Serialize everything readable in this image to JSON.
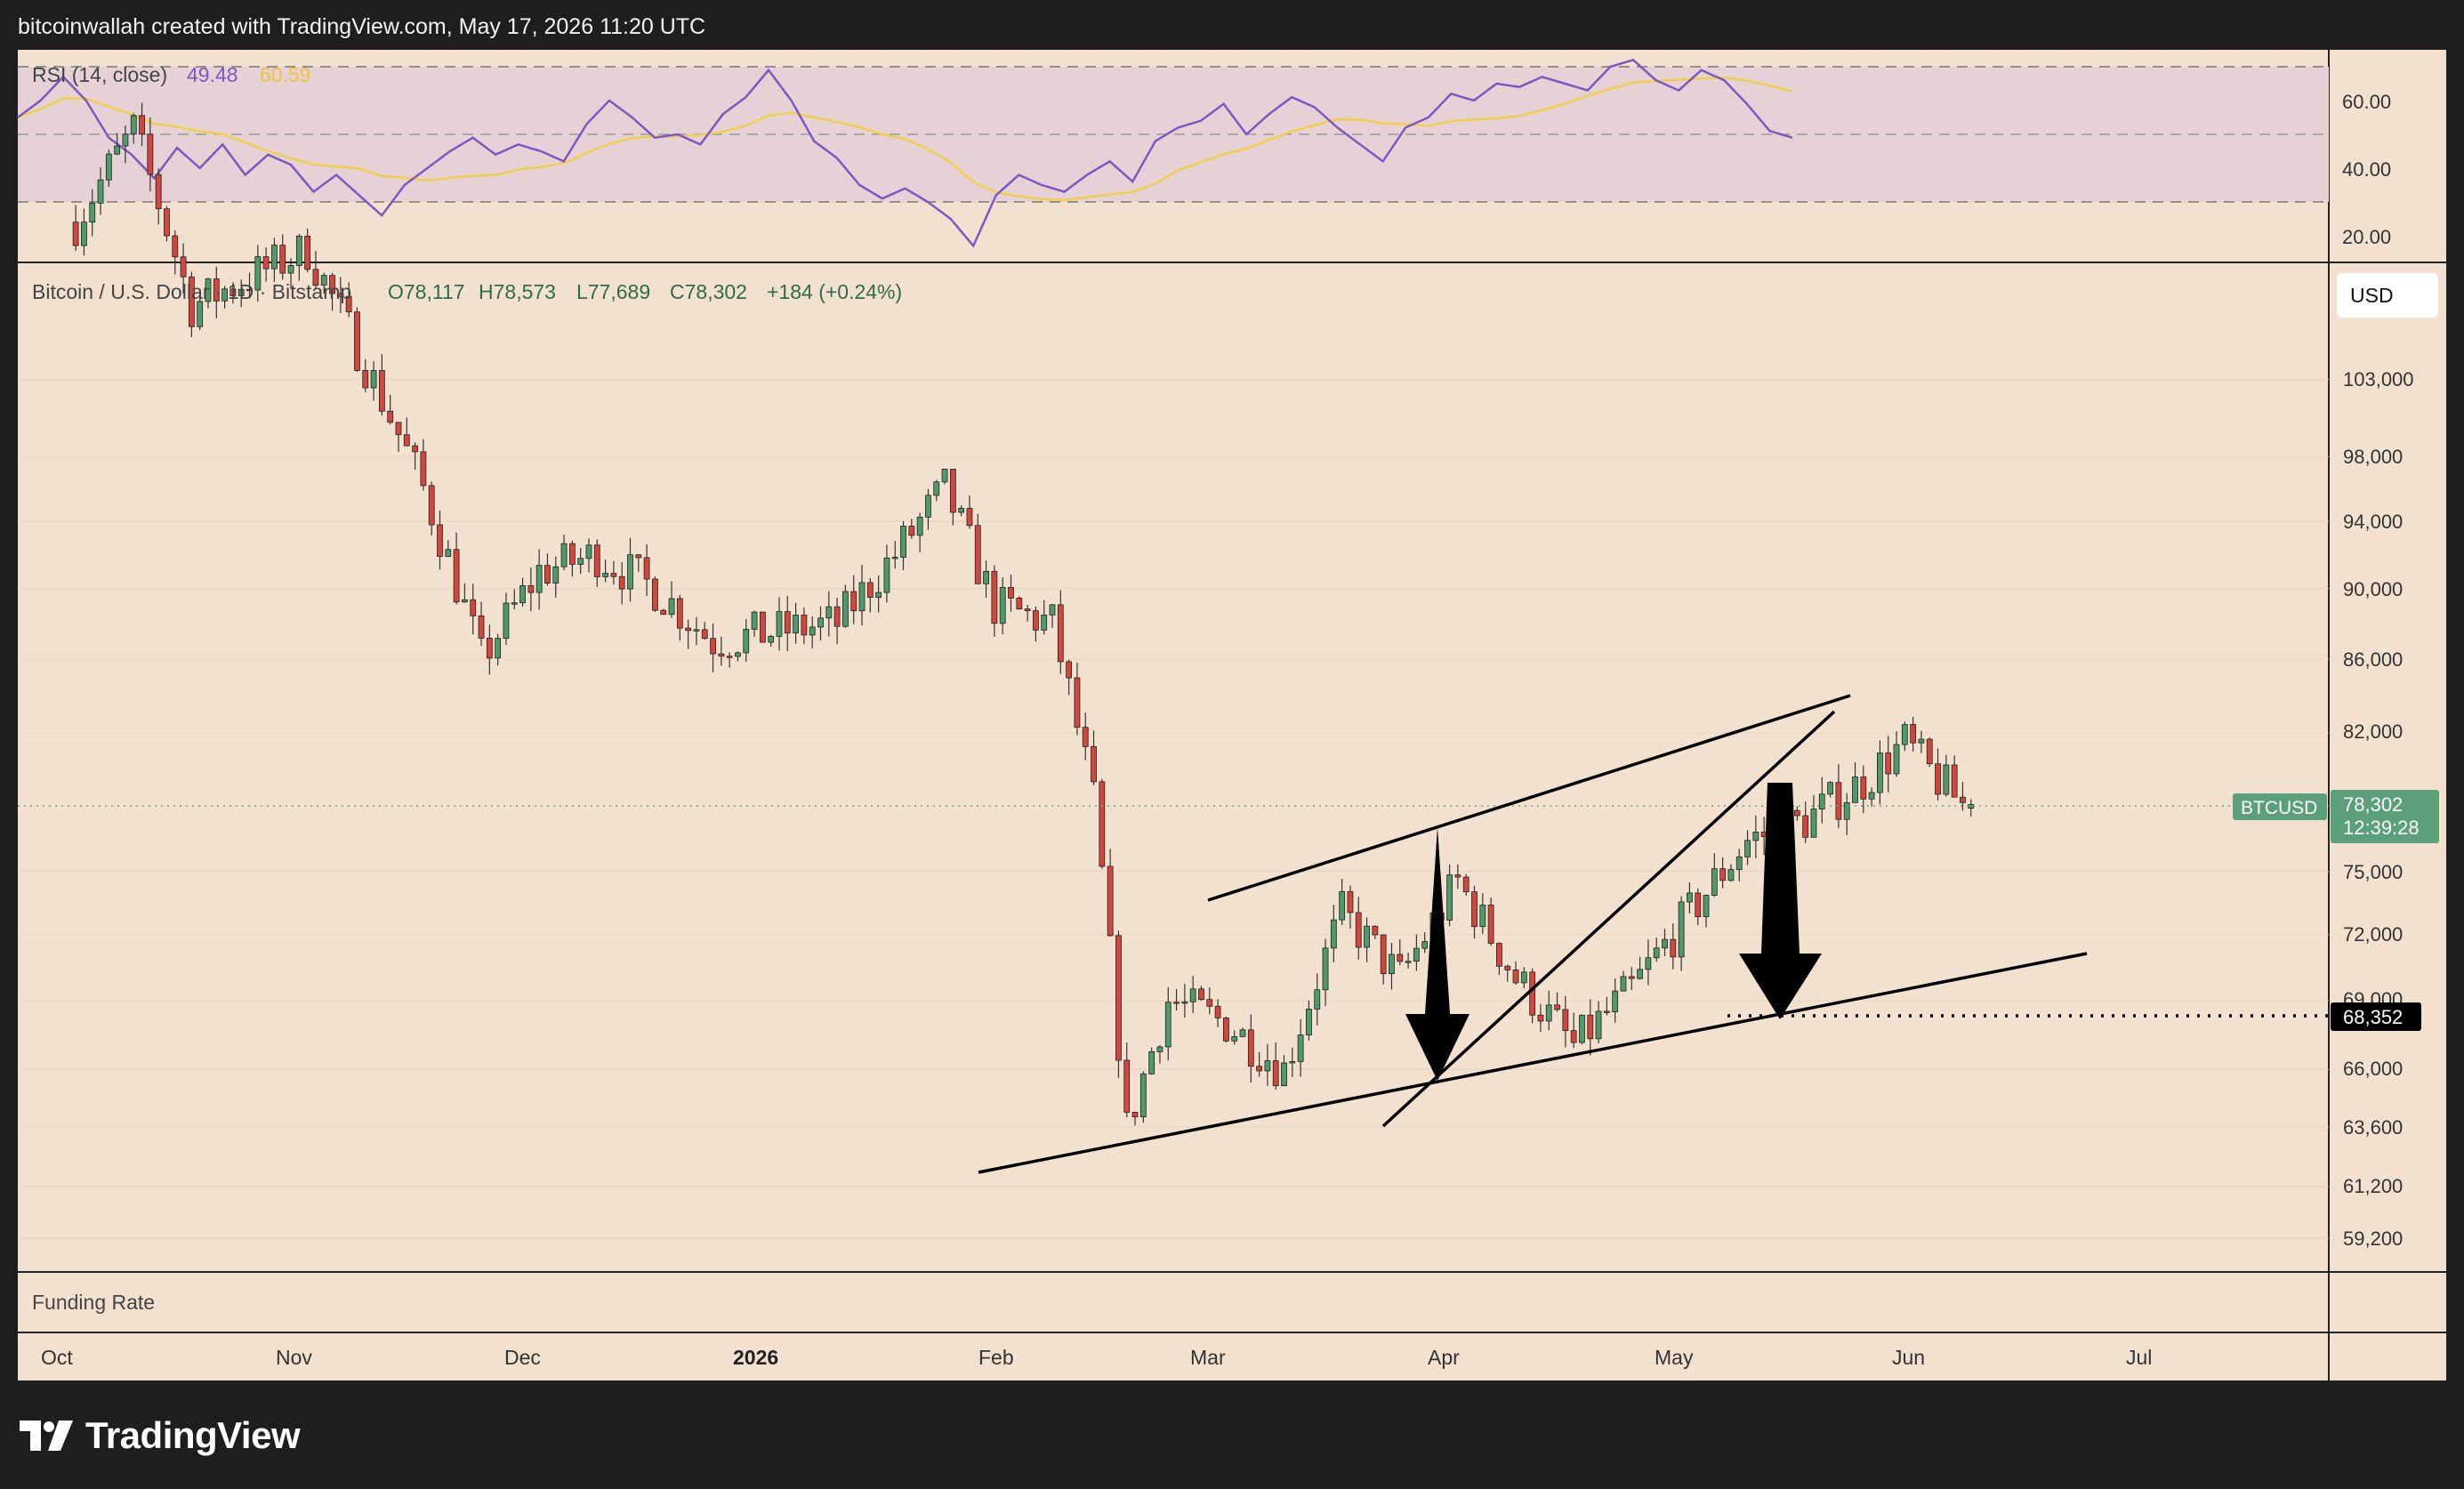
{
  "header": {
    "attribution": "bitcoinwallah created with TradingView.com, May 17, 2026 11:20 UTC"
  },
  "brand": {
    "name": "TradingView"
  },
  "colors": {
    "background": "#f3e1cf",
    "frame": "#1e1e1e",
    "up": "#4e9a6a",
    "down": "#d2473d",
    "rsi": "#7e57c2",
    "rsi_ma": "#f0d04a",
    "price_tag": "#5b9f7b"
  },
  "rsi_panel": {
    "label": "RSI (14, close)",
    "value": "49.48",
    "ma_value": "60.59",
    "levels": [
      "60.00",
      "40.00",
      "20.00"
    ]
  },
  "price_panel": {
    "legend": {
      "symbol": "Bitcoin / U.S. Dollar · 1D · Bitstamp",
      "open": "O78,117",
      "high": "H78,573",
      "low": "L77,689",
      "close": "C78,302",
      "change": "+184 (+0.24%)"
    },
    "currency": "USD",
    "y_labels": [
      "103,000",
      "98,000",
      "94,000",
      "90,000",
      "86,000",
      "82,000",
      "75,000",
      "72,000",
      "69,000",
      "66,000",
      "63,600",
      "61,200",
      "59,200"
    ],
    "last_price": {
      "symbol": "BTCUSD",
      "price": "78,302",
      "countdown": "12:39:28"
    },
    "target_level": "68,352"
  },
  "funding_panel": {
    "label": "Funding Rate"
  },
  "time_axis": {
    "labels": [
      "Oct",
      "Nov",
      "Dec",
      "2026",
      "Feb",
      "Mar",
      "Apr",
      "May",
      "Jun",
      "Jul"
    ]
  },
  "chart_data": {
    "type": "candlestick",
    "symbol": "BTCUSD",
    "interval": "1D",
    "exchange": "Bitstamp",
    "ohlc_last": {
      "open": 78117,
      "high": 78573,
      "low": 77689,
      "close": 78302,
      "change": 184,
      "change_pct": 0.24
    },
    "x_range": [
      "Sep 2025",
      "Jul 2026"
    ],
    "y_range": [
      58000,
      108000
    ],
    "close_series": {
      "dates": [
        "2025-10-01",
        "2025-10-08",
        "2025-10-15",
        "2025-10-22",
        "2025-10-29",
        "2025-11-05",
        "2025-11-12",
        "2025-11-19",
        "2025-11-26",
        "2025-12-03",
        "2025-12-10",
        "2025-12-17",
        "2025-12-24",
        "2026-01-01",
        "2026-01-08",
        "2026-01-14",
        "2026-01-20",
        "2026-01-27",
        "2026-02-01",
        "2026-02-05",
        "2026-02-10",
        "2026-02-17",
        "2026-02-24",
        "2026-03-03",
        "2026-03-10",
        "2026-03-17",
        "2026-03-24",
        "2026-03-31",
        "2026-04-07",
        "2026-04-14",
        "2026-04-21",
        "2026-04-28",
        "2026-05-05",
        "2026-05-10",
        "2026-05-13",
        "2026-05-17"
      ],
      "values": [
        114000,
        121000,
        108000,
        110000,
        112000,
        104000,
        96000,
        86000,
        91000,
        92000,
        90000,
        87000,
        87500,
        88000,
        92000,
        96000,
        89000,
        88000,
        78500,
        63500,
        69000,
        68000,
        66000,
        73000,
        70000,
        74500,
        70000,
        67000,
        69500,
        73000,
        76500,
        77500,
        79500,
        81500,
        80000,
        78302
      ]
    },
    "rsi": {
      "period": 14,
      "last": 49.48,
      "ma_last": 60.59,
      "levels": [
        70,
        50,
        30
      ],
      "visible_ticks": [
        60,
        40,
        20
      ],
      "series": [
        55,
        60,
        67,
        60,
        49,
        44,
        37,
        46,
        40,
        47,
        38,
        44,
        41,
        33,
        38,
        32,
        26,
        35,
        40,
        45,
        49,
        44,
        47,
        45,
        42,
        53,
        60,
        55,
        49,
        50,
        47,
        56,
        61,
        69,
        60,
        48,
        43,
        35,
        31,
        34,
        30,
        25,
        17,
        32,
        38,
        35,
        33,
        38,
        42,
        36,
        48,
        52,
        54,
        59,
        50,
        56,
        61,
        58,
        52,
        47,
        42,
        52,
        55,
        62,
        60,
        65,
        64,
        67,
        65,
        63,
        70,
        72,
        66,
        63,
        69,
        66,
        59,
        51,
        49
      ]
    },
    "annotations": {
      "rising_wedge": true,
      "wedge_upper_line": {
        "from": [
          "2026-02-27",
          73800
        ],
        "to": [
          "2026-05-20",
          83500
        ]
      },
      "wedge_lower_line": {
        "from": [
          "2026-03-25",
          63800
        ],
        "to": [
          "2026-05-19",
          82600
        ]
      },
      "measured_move_line": {
        "from": [
          "2026-02-01",
          62400
        ],
        "to": [
          "2026-06-25",
          70700
        ]
      },
      "target": 68352,
      "arrows": [
        "measured height at Apr",
        "projected drop from wedge break in May"
      ]
    }
  }
}
